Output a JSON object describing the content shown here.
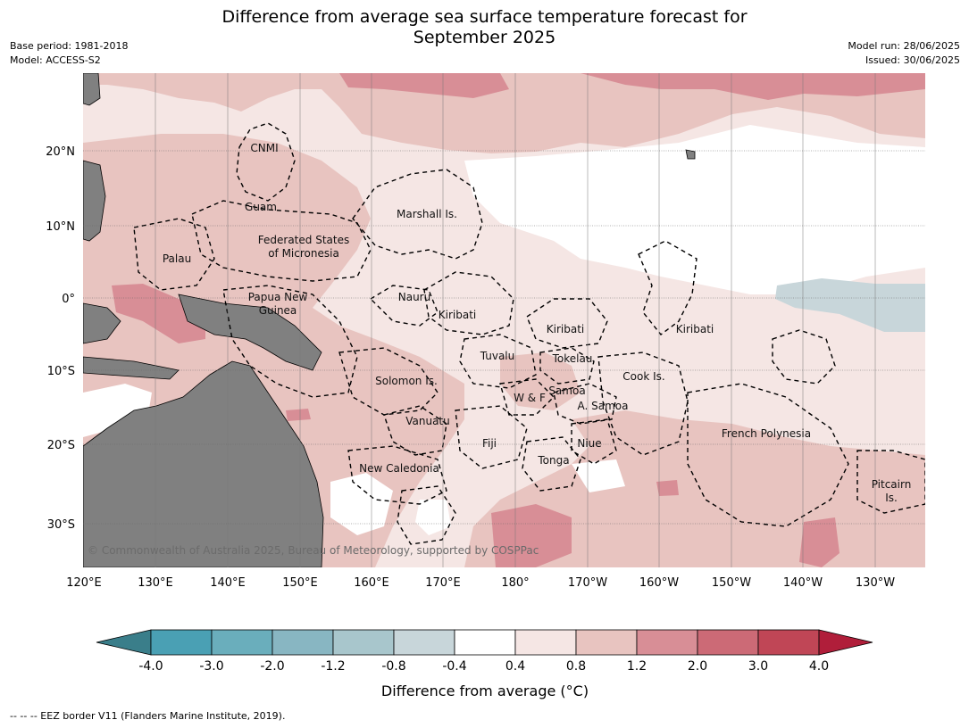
{
  "header": {
    "title_line1": "Difference from average sea surface temperature forecast for",
    "title_line2": "September 2025",
    "base_period": "Base period: 1981-2018",
    "model": "Model: ACCESS-S2",
    "model_run": "Model run: 28/06/2025",
    "issued": "Issued: 30/06/2025"
  },
  "map": {
    "copyright": "© Commonwealth of Australia 2025, Bureau of Meteorology, supported by COSPPac",
    "lon_ticks": [
      "120°E",
      "130°E",
      "140°E",
      "150°E",
      "160°E",
      "170°E",
      "180°",
      "170°W",
      "160°W",
      "150°W",
      "140°W",
      "130°W"
    ],
    "lat_ticks": [
      "20°N",
      "10°N",
      "0°",
      "10°S",
      "20°S",
      "30°S"
    ],
    "regions": {
      "cnmi": "CNMI",
      "guam": "Guam",
      "palau": "Palau",
      "fsm_1": "Federated States",
      "fsm_2": "of Micronesia",
      "marshall": "Marshall Is.",
      "nauru": "Nauru",
      "kiribati_w": "Kiribati",
      "kiribati_c": "Kiribati",
      "kiribati_e": "Kiribati",
      "png_1": "Papua New",
      "png_2": "Guinea",
      "tuvalu": "Tuvalu",
      "tokelau": "Tokelau",
      "cook": "Cook Is.",
      "solomon": "Solomon Is.",
      "samoa": "Samoa",
      "wf": "W & F",
      "asamoa": "A. Samoa",
      "vanuatu": "Vanuatu",
      "fiji": "Fiji",
      "niue": "Niue",
      "tonga": "Tonga",
      "fp": "French Polynesia",
      "newcal": "New Caledonia",
      "pitcairn_1": "Pitcairn",
      "pitcairn_2": "Is."
    }
  },
  "colorbar": {
    "title": "Difference from average (°C)",
    "tick_labels": [
      "-4.0",
      "-3.0",
      "-2.0",
      "-1.2",
      "-0.8",
      "-0.4",
      "0.4",
      "0.8",
      "1.2",
      "2.0",
      "3.0",
      "4.0"
    ],
    "colors": {
      "under": "#3a7e8a",
      "bins": [
        "#4aa0b4",
        "#6aaebc",
        "#88b6c2",
        "#a8c6cc",
        "#c8d6da",
        "#ffffff",
        "#f5e6e4",
        "#e8c4c0",
        "#d88e96",
        "#cc6a76",
        "#c04656"
      ],
      "over": "#b01e3a"
    }
  },
  "footer": {
    "legend_text": "--  --  -- EEZ border V11 (Flanders Marine Institute, 2019)."
  }
}
